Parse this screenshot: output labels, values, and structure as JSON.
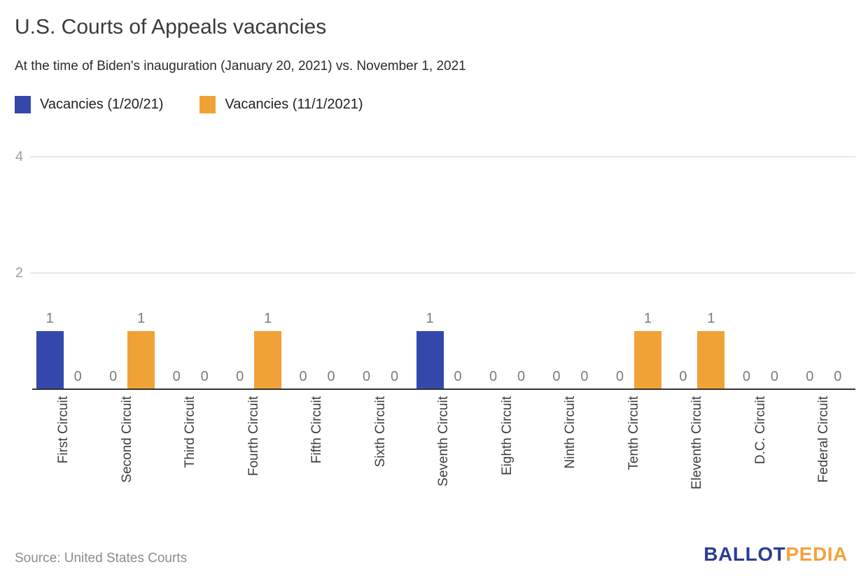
{
  "header": {
    "title": "U.S. Courts of Appeals vacancies",
    "subtitle": "At the time of Biden's inauguration (January 20, 2021) vs. November 1, 2021"
  },
  "legend": {
    "items": [
      {
        "label": "Vacancies (1/20/21)",
        "color": "#3448ab"
      },
      {
        "label": "Vacancies (11/1/2021)",
        "color": "#f0a236"
      }
    ]
  },
  "chart_data": {
    "type": "bar",
    "title": "U.S. Courts of Appeals vacancies",
    "subtitle": "At the time of Biden's inauguration (January 20, 2021) vs. November 1, 2021",
    "categories": [
      "First Circuit",
      "Second Circuit",
      "Third Circuit",
      "Fourth Circuit",
      "Fifth Circuit",
      "Sixth Circuit",
      "Seventh Circuit",
      "Eighth Circuit",
      "Ninth Circuit",
      "Tenth Circuit",
      "Eleventh Circuit",
      "D.C. Circuit",
      "Federal Circuit"
    ],
    "series": [
      {
        "name": "Vacancies (1/20/21)",
        "color": "#3448ab",
        "values": [
          1,
          0,
          0,
          0,
          0,
          0,
          1,
          0,
          0,
          0,
          0,
          0,
          0
        ]
      },
      {
        "name": "Vacancies (11/1/2021)",
        "color": "#f0a236",
        "values": [
          0,
          1,
          0,
          1,
          0,
          0,
          0,
          0,
          0,
          1,
          1,
          0,
          0
        ]
      }
    ],
    "ylim": [
      0,
      4
    ],
    "yticks": [
      2,
      4
    ],
    "grid": true,
    "legend_position": "top",
    "bar_value_labels": true
  },
  "colors": {
    "grid": "#e7e7e7",
    "axis": "#333333",
    "ytick_label": "#9e9e9e",
    "value_label": "#7b7b7b",
    "category_label": "#3d3d3d"
  },
  "footer": {
    "source": "Source: United States Courts",
    "logo": {
      "ballot": "BALLOT",
      "pedia": "PEDIA",
      "ballot_color": "#2b3b96",
      "pedia_color": "#f2a33c"
    }
  }
}
